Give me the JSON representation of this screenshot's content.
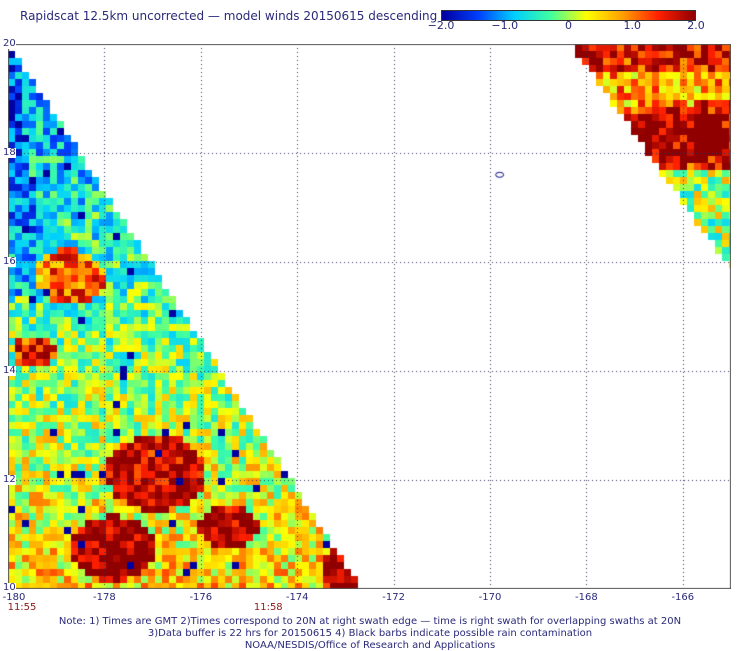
{
  "title": "Rapidscat 12.5km uncorrected — model winds 20150615 descending",
  "colorbar": {
    "min": -2.0,
    "max": 2.0,
    "tick_labels": [
      "−2.0",
      "−1.0",
      "0",
      "1.0",
      "2.0"
    ],
    "tick_values": [
      -2.0,
      -1.0,
      0,
      1.0,
      2.0
    ],
    "colors": [
      "#0000a0",
      "#0040ff",
      "#00d0ff",
      "#40ffa0",
      "#ffff00",
      "#ffa000",
      "#ff2000",
      "#900000"
    ]
  },
  "map": {
    "lon_range": [
      -180,
      -165
    ],
    "lat_range": [
      10,
      20
    ],
    "lon_labels": [
      "-180",
      "-178",
      "-176",
      "-174",
      "-172",
      "-170",
      "-168",
      "-166"
    ],
    "lon_values": [
      -180,
      -178,
      -176,
      -174,
      -172,
      -170,
      -168,
      -166
    ],
    "lat_labels": [
      "20",
      "18",
      "16",
      "14",
      "12",
      "10"
    ],
    "lat_values": [
      20,
      18,
      16,
      14,
      12,
      10
    ],
    "grid": "dotted",
    "swath_left": {
      "lon_at_lat10": -172.7,
      "lon_at_lat20": -180
    },
    "swath_right": {
      "lon_top_left": -168.2,
      "lat_bottom": 16.0
    }
  },
  "time_labels": [
    {
      "text": "11:55",
      "lon": -180
    },
    {
      "text": "11:58",
      "lon": -174.6
    }
  ],
  "notes": [
    "Note: 1) Times are GMT 2)Times correspond to 20N at right swath edge — time is right swath for overlapping swaths at 20N",
    "3)Data buffer is 22 hrs for 20150615 4) Black barbs indicate possible rain contamination",
    "NOAA/NESDIS/Office of Research and Applications"
  ]
}
